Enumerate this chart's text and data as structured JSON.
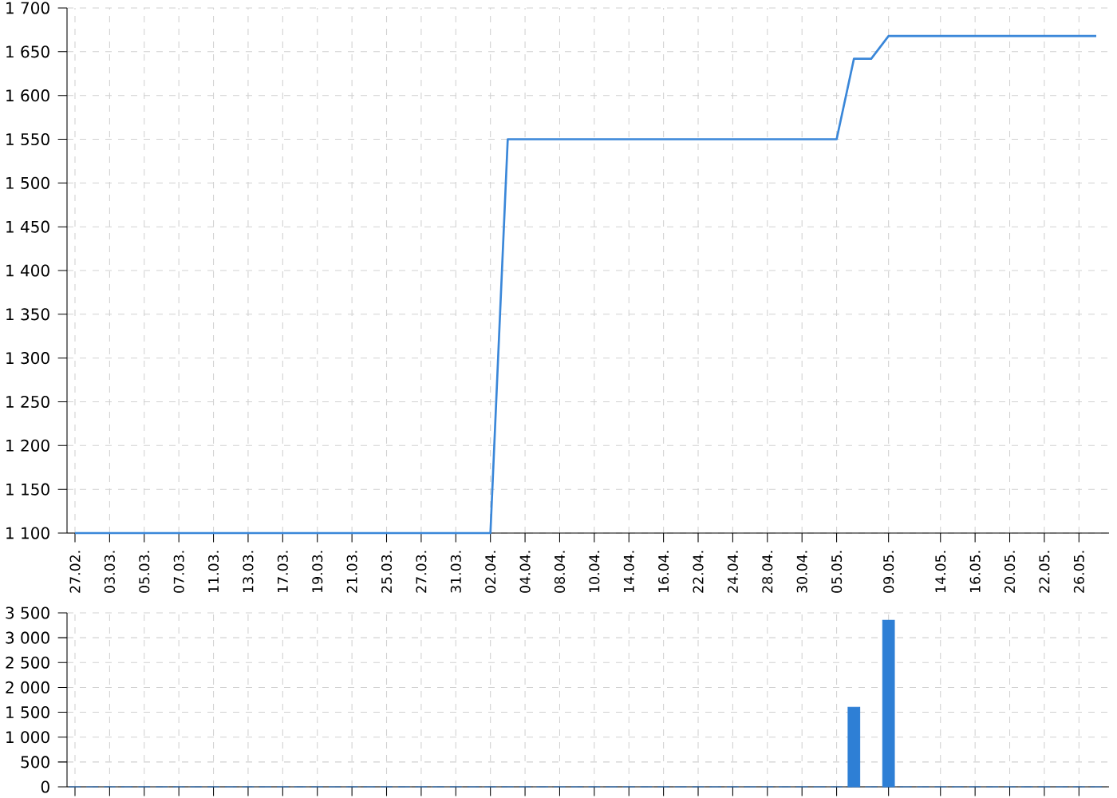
{
  "chart_data": [
    {
      "type": "line",
      "color": "#3a87d9",
      "grid": true,
      "categories": [
        "27.02.",
        null,
        "03.03.",
        null,
        "05.03.",
        null,
        "07.03.",
        null,
        "11.03.",
        null,
        "13.03.",
        null,
        "17.03.",
        null,
        "19.03.",
        null,
        "21.03.",
        null,
        "25.03.",
        null,
        "27.03.",
        null,
        "31.03.",
        null,
        "02.04.",
        null,
        "04.04.",
        null,
        "08.04.",
        null,
        "10.04.",
        null,
        "14.04.",
        null,
        "16.04.",
        null,
        "22.04.",
        null,
        "24.04.",
        null,
        "28.04.",
        null,
        "30.04.",
        null,
        "05.05.",
        null,
        null,
        "09.05.",
        null,
        null,
        "14.05.",
        null,
        "16.05.",
        null,
        "20.05.",
        null,
        "22.05.",
        null,
        "26.05.",
        null
      ],
      "values": [
        1100,
        1100,
        1100,
        1100,
        1100,
        1100,
        1100,
        1100,
        1100,
        1100,
        1100,
        1100,
        1100,
        1100,
        1100,
        1100,
        1100,
        1100,
        1100,
        1100,
        1100,
        1100,
        1100,
        1100,
        1100,
        1550,
        1550,
        1550,
        1550,
        1550,
        1550,
        1550,
        1550,
        1550,
        1550,
        1550,
        1550,
        1550,
        1550,
        1550,
        1550,
        1550,
        1550,
        1550,
        1550,
        1642,
        1642,
        1668,
        1668,
        1668,
        1668,
        1668,
        1668,
        1668,
        1668,
        1668,
        1668,
        1668,
        1668,
        1668
      ],
      "ylim": [
        1100,
        1700
      ],
      "yticks": [
        {
          "value": 1100,
          "label": "1 100"
        },
        {
          "value": 1150,
          "label": "1 150"
        },
        {
          "value": 1200,
          "label": "1 200"
        },
        {
          "value": 1250,
          "label": "1 250"
        },
        {
          "value": 1300,
          "label": "1 300"
        },
        {
          "value": 1350,
          "label": "1 350"
        },
        {
          "value": 1400,
          "label": "1 400"
        },
        {
          "value": 1450,
          "label": "1 450"
        },
        {
          "value": 1500,
          "label": "1 500"
        },
        {
          "value": 1550,
          "label": "1 550"
        },
        {
          "value": 1600,
          "label": "1 600"
        },
        {
          "value": 1650,
          "label": "1 650"
        },
        {
          "value": 1700,
          "label": "1 700"
        }
      ]
    },
    {
      "type": "bar",
      "color": "#2e7fd5",
      "grid": true,
      "tick_labels": "y",
      "categories": [
        "27.02.",
        null,
        "03.03.",
        null,
        "05.03.",
        null,
        "07.03.",
        null,
        "11.03.",
        null,
        "13.03.",
        null,
        "17.03.",
        null,
        "19.03.",
        null,
        "21.03.",
        null,
        "25.03.",
        null,
        "27.03.",
        null,
        "31.03.",
        null,
        "02.04.",
        null,
        "04.04.",
        null,
        "08.04.",
        null,
        "10.04.",
        null,
        "14.04.",
        null,
        "16.04.",
        null,
        "22.04.",
        null,
        "24.04.",
        null,
        "28.04.",
        null,
        "30.04.",
        null,
        "05.05.",
        null,
        null,
        "09.05.",
        null,
        null,
        "14.05.",
        null,
        "16.05.",
        null,
        "20.05.",
        null,
        "22.05.",
        null,
        "26.05.",
        null
      ],
      "values": [
        0,
        0,
        0,
        0,
        0,
        0,
        0,
        0,
        0,
        0,
        0,
        0,
        0,
        0,
        0,
        0,
        0,
        0,
        0,
        0,
        0,
        0,
        0,
        0,
        0,
        0,
        0,
        0,
        0,
        0,
        0,
        0,
        0,
        0,
        0,
        0,
        0,
        0,
        0,
        0,
        0,
        0,
        0,
        0,
        0,
        1600,
        0,
        3350,
        0,
        0,
        0,
        0,
        0,
        0,
        0,
        0,
        0,
        0,
        0,
        0
      ],
      "ylim": [
        0,
        3500
      ],
      "yticks": [
        0,
        500,
        {
          "value": 1000,
          "label": "1 000"
        },
        {
          "value": 1500,
          "label": "1 500"
        },
        {
          "value": 2000,
          "label": "2 000"
        },
        {
          "value": 2500,
          "label": "2 500"
        },
        {
          "value": 3000,
          "label": "3 000"
        },
        {
          "value": 3500,
          "label": "3 500"
        }
      ]
    }
  ]
}
